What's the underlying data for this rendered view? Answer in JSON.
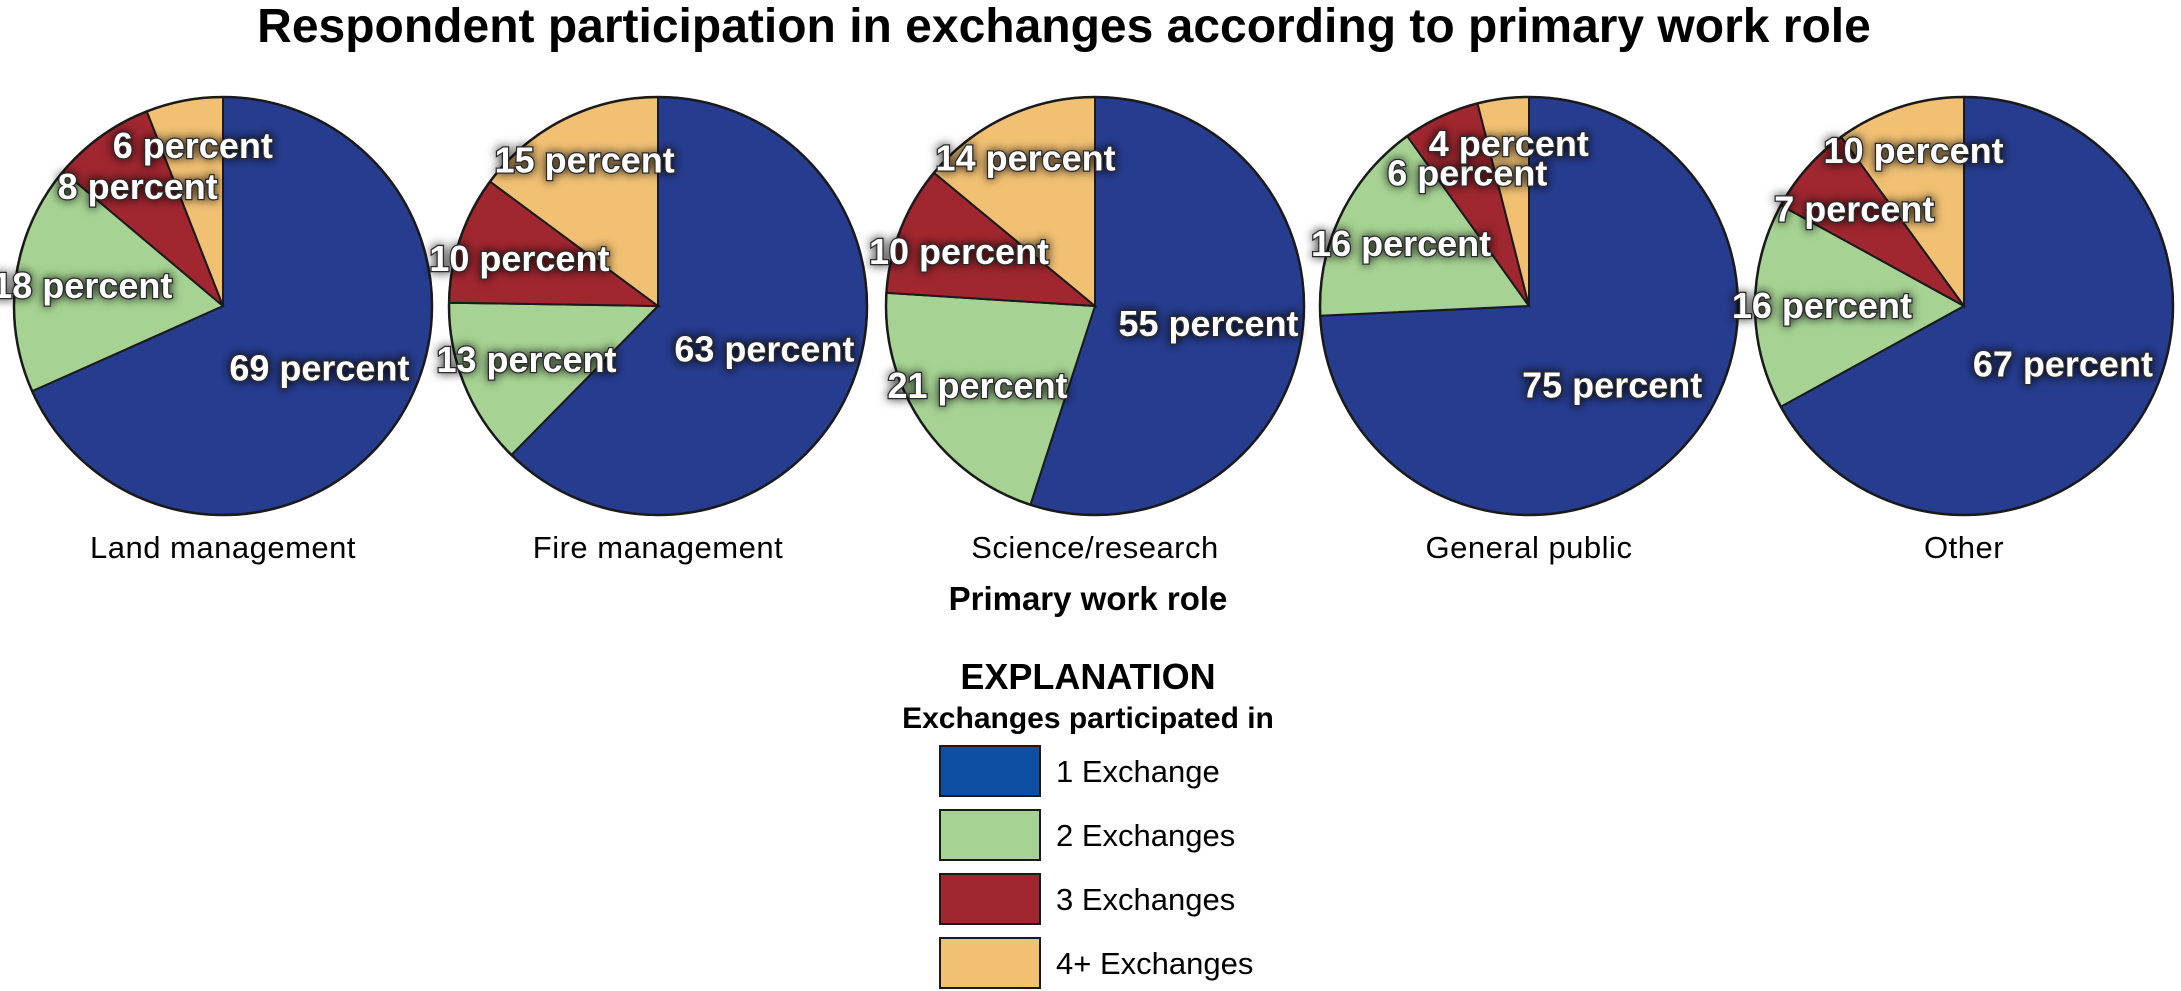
{
  "chart_data": {
    "type": "pie",
    "title": "Respondent participation in exchanges according to primary work role",
    "xlabel": "Primary work role",
    "categories": [
      "Land management",
      "Fire management",
      "Science/research",
      "General public",
      "Other"
    ],
    "series": [
      {
        "name": "1 Exchange",
        "values": [
          69,
          63,
          55,
          75,
          67
        ]
      },
      {
        "name": "2 Exchanges",
        "values": [
          18,
          13,
          21,
          16,
          16
        ]
      },
      {
        "name": "3 Exchanges",
        "values": [
          8,
          10,
          10,
          6,
          7
        ]
      },
      {
        "name": "4+ Exchanges",
        "values": [
          6,
          15,
          14,
          4,
          10
        ]
      }
    ],
    "value_suffix": " percent",
    "colors": [
      "#263c8f",
      "#a6d393",
      "#a0262f",
      "#f1c073"
    ],
    "legend": {
      "title": "EXPLANATION",
      "subtitle": "Exchanges participated in",
      "swatch_colors": [
        "#0e4ea3",
        "#a6d393",
        "#a0262f",
        "#f1c073"
      ],
      "placement": "bottom-center"
    }
  }
}
